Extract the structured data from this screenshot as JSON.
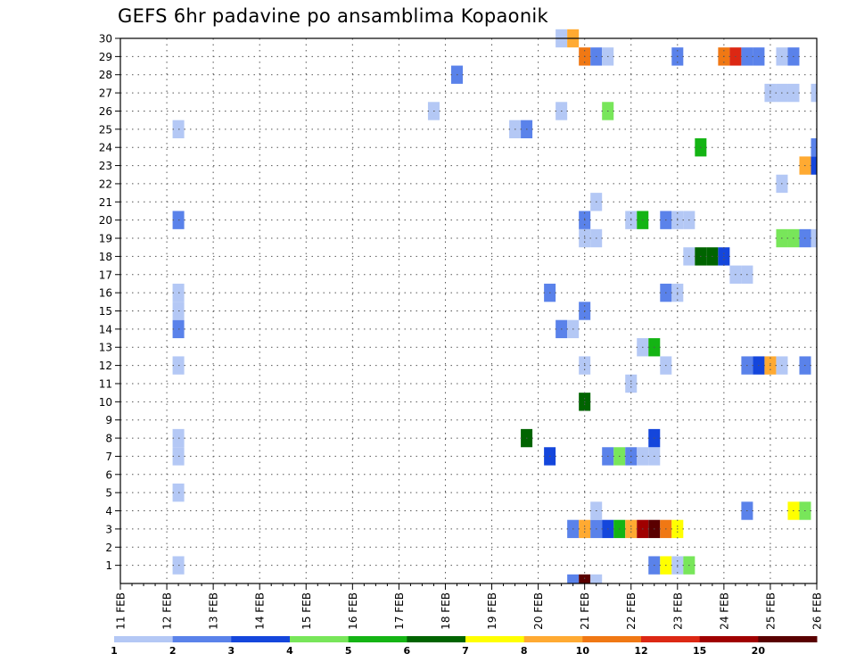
{
  "chart_data": {
    "type": "heatmap",
    "title": "GEFS 6hr padavine po ansamblima Kopaonik",
    "xlabel": "",
    "ylabel": "",
    "x_tick_labels": [
      "11 FEB",
      "12 FEB",
      "13 FEB",
      "14 FEB",
      "15 FEB",
      "16 FEB",
      "17 FEB",
      "18 FEB",
      "19 FEB",
      "20 FEB",
      "21 FEB",
      "22 FEB",
      "23 FEB",
      "24 FEB",
      "25 FEB",
      "26 FEB"
    ],
    "y_tick_labels": [
      "1",
      "2",
      "3",
      "4",
      "5",
      "6",
      "7",
      "8",
      "9",
      "10",
      "11",
      "12",
      "13",
      "14",
      "15",
      "16",
      "17",
      "18",
      "19",
      "20",
      "21",
      "22",
      "23",
      "24",
      "25",
      "26",
      "27",
      "28",
      "29",
      "30"
    ],
    "xlim": [
      "11 FEB",
      "26 FEB"
    ],
    "ylim": [
      0,
      30
    ],
    "grid": true,
    "colorbar": {
      "position": "bottom",
      "labels": [
        "1",
        "2",
        "3",
        "4",
        "5",
        "6",
        "7",
        "8",
        "10",
        "12",
        "15",
        "20"
      ],
      "colors": [
        "#b4c8f5",
        "#5a82ea",
        "#1446dc",
        "#78e65a",
        "#14b414",
        "#006400",
        "#ffff00",
        "#ffaa32",
        "#f07814",
        "#dc2814",
        "#a00000",
        "#5a0000"
      ]
    },
    "points": [
      {
        "t": "12 FEB 06",
        "m": 1,
        "v": 1
      },
      {
        "t": "12 FEB 06",
        "m": 5,
        "v": 1
      },
      {
        "t": "12 FEB 06",
        "m": 7,
        "v": 1
      },
      {
        "t": "12 FEB 06",
        "m": 8,
        "v": 1
      },
      {
        "t": "12 FEB 06",
        "m": 12,
        "v": 1
      },
      {
        "t": "12 FEB 06",
        "m": 14,
        "v": 2
      },
      {
        "t": "12 FEB 06",
        "m": 15,
        "v": 1
      },
      {
        "t": "12 FEB 06",
        "m": 16,
        "v": 1
      },
      {
        "t": "12 FEB 06",
        "m": 20,
        "v": 2
      },
      {
        "t": "12 FEB 06",
        "m": 25,
        "v": 1
      },
      {
        "t": "17 FEB 18",
        "m": 26,
        "v": 1
      },
      {
        "t": "18 FEB 06",
        "m": 28,
        "v": 2
      },
      {
        "t": "19 FEB 12",
        "m": 25,
        "v": 1
      },
      {
        "t": "19 FEB 18",
        "m": 25,
        "v": 2
      },
      {
        "t": "19 FEB 18",
        "m": 8,
        "v": 6
      },
      {
        "t": "20 FEB 06",
        "m": 7,
        "v": 3
      },
      {
        "t": "20 FEB 06",
        "m": 16,
        "v": 2
      },
      {
        "t": "20 FEB 12",
        "m": 14,
        "v": 2
      },
      {
        "t": "20 FEB 12",
        "m": 26,
        "v": 1
      },
      {
        "t": "20 FEB 12",
        "m": 30,
        "v": 1
      },
      {
        "t": "20 FEB 18",
        "m": 3,
        "v": 2
      },
      {
        "t": "20 FEB 18",
        "m": 14,
        "v": 1
      },
      {
        "t": "20 FEB 18",
        "m": 30,
        "v": 8
      },
      {
        "t": "21 FEB 00",
        "m": 3,
        "v": 8
      },
      {
        "t": "21 FEB 00",
        "m": 10,
        "v": 6
      },
      {
        "t": "21 FEB 00",
        "m": 12,
        "v": 1
      },
      {
        "t": "21 FEB 00",
        "m": 15,
        "v": 2
      },
      {
        "t": "21 FEB 00",
        "m": 19,
        "v": 1
      },
      {
        "t": "21 FEB 00",
        "m": 20,
        "v": 2
      },
      {
        "t": "21 FEB 00",
        "m": 29,
        "v": 10
      },
      {
        "t": "21 FEB 06",
        "m": 3,
        "v": 2
      },
      {
        "t": "21 FEB 06",
        "m": 4,
        "v": 1
      },
      {
        "t": "21 FEB 06",
        "m": 19,
        "v": 1
      },
      {
        "t": "21 FEB 06",
        "m": 21,
        "v": 1
      },
      {
        "t": "21 FEB 06",
        "m": 29,
        "v": 2
      },
      {
        "t": "21 FEB 12",
        "m": 3,
        "v": 3
      },
      {
        "t": "21 FEB 12",
        "m": 7,
        "v": 2
      },
      {
        "t": "21 FEB 12",
        "m": 26,
        "v": 4
      },
      {
        "t": "21 FEB 12",
        "m": 29,
        "v": 1
      },
      {
        "t": "21 FEB 18",
        "m": 3,
        "v": 5
      },
      {
        "t": "21 FEB 18",
        "m": 7,
        "v": 4
      },
      {
        "t": "22 FEB 00",
        "m": 3,
        "v": 8
      },
      {
        "t": "22 FEB 00",
        "m": 7,
        "v": 2
      },
      {
        "t": "22 FEB 00",
        "m": 11,
        "v": 1
      },
      {
        "t": "22 FEB 00",
        "m": 20,
        "v": 1
      },
      {
        "t": "22 FEB 06",
        "m": 3,
        "v": 15
      },
      {
        "t": "22 FEB 06",
        "m": 7,
        "v": 1
      },
      {
        "t": "22 FEB 06",
        "m": 13,
        "v": 1
      },
      {
        "t": "22 FEB 06",
        "m": 20,
        "v": 5
      },
      {
        "t": "22 FEB 12",
        "m": 1,
        "v": 2
      },
      {
        "t": "22 FEB 12",
        "m": 3,
        "v": 20
      },
      {
        "t": "22 FEB 12",
        "m": 7,
        "v": 1
      },
      {
        "t": "22 FEB 12",
        "m": 8,
        "v": 3
      },
      {
        "t": "22 FEB 12",
        "m": 13,
        "v": 5
      },
      {
        "t": "22 FEB 18",
        "m": 1,
        "v": 7
      },
      {
        "t": "22 FEB 18",
        "m": 3,
        "v": 10
      },
      {
        "t": "22 FEB 18",
        "m": 12,
        "v": 1
      },
      {
        "t": "22 FEB 18",
        "m": 16,
        "v": 2
      },
      {
        "t": "22 FEB 18",
        "m": 20,
        "v": 2
      },
      {
        "t": "23 FEB 00",
        "m": 1,
        "v": 1
      },
      {
        "t": "23 FEB 00",
        "m": 3,
        "v": 7
      },
      {
        "t": "23 FEB 00",
        "m": 16,
        "v": 1
      },
      {
        "t": "23 FEB 00",
        "m": 20,
        "v": 1
      },
      {
        "t": "23 FEB 00",
        "m": 29,
        "v": 2
      },
      {
        "t": "23 FEB 06",
        "m": 1,
        "v": 4
      },
      {
        "t": "23 FEB 06",
        "m": 18,
        "v": 1
      },
      {
        "t": "23 FEB 06",
        "m": 20,
        "v": 1
      },
      {
        "t": "23 FEB 12",
        "m": 18,
        "v": 6
      },
      {
        "t": "23 FEB 12",
        "m": 24,
        "v": 5
      },
      {
        "t": "23 FEB 18",
        "m": 18,
        "v": 6
      },
      {
        "t": "24 FEB 00",
        "m": 18,
        "v": 3
      },
      {
        "t": "24 FEB 00",
        "m": 29,
        "v": 10
      },
      {
        "t": "24 FEB 06",
        "m": 17,
        "v": 1
      },
      {
        "t": "24 FEB 06",
        "m": 29,
        "v": 12
      },
      {
        "t": "24 FEB 12",
        "m": 4,
        "v": 2
      },
      {
        "t": "24 FEB 12",
        "m": 12,
        "v": 2
      },
      {
        "t": "24 FEB 12",
        "m": 17,
        "v": 1
      },
      {
        "t": "24 FEB 12",
        "m": 29,
        "v": 2
      },
      {
        "t": "24 FEB 18",
        "m": 12,
        "v": 3
      },
      {
        "t": "24 FEB 18",
        "m": 29,
        "v": 2
      },
      {
        "t": "25 FEB 00",
        "m": 12,
        "v": 8
      },
      {
        "t": "25 FEB 00",
        "m": 27,
        "v": 1
      },
      {
        "t": "25 FEB 06",
        "m": 12,
        "v": 1
      },
      {
        "t": "25 FEB 06",
        "m": 19,
        "v": 4
      },
      {
        "t": "25 FEB 06",
        "m": 22,
        "v": 1
      },
      {
        "t": "25 FEB 06",
        "m": 27,
        "v": 1
      },
      {
        "t": "25 FEB 06",
        "m": 29,
        "v": 1
      },
      {
        "t": "25 FEB 12",
        "m": 4,
        "v": 7
      },
      {
        "t": "25 FEB 12",
        "m": 19,
        "v": 4
      },
      {
        "t": "25 FEB 12",
        "m": 27,
        "v": 1
      },
      {
        "t": "25 FEB 12",
        "m": 29,
        "v": 2
      },
      {
        "t": "25 FEB 18",
        "m": 4,
        "v": 4
      },
      {
        "t": "25 FEB 18",
        "m": 12,
        "v": 2
      },
      {
        "t": "25 FEB 18",
        "m": 19,
        "v": 2
      },
      {
        "t": "25 FEB 18",
        "m": 23,
        "v": 8
      },
      {
        "t": "26 FEB 00",
        "m": 19,
        "v": 1
      },
      {
        "t": "26 FEB 00",
        "m": 23,
        "v": 3
      },
      {
        "t": "26 FEB 00",
        "m": 24,
        "v": 2
      },
      {
        "t": "26 FEB 00",
        "m": 27,
        "v": 1
      }
    ]
  }
}
